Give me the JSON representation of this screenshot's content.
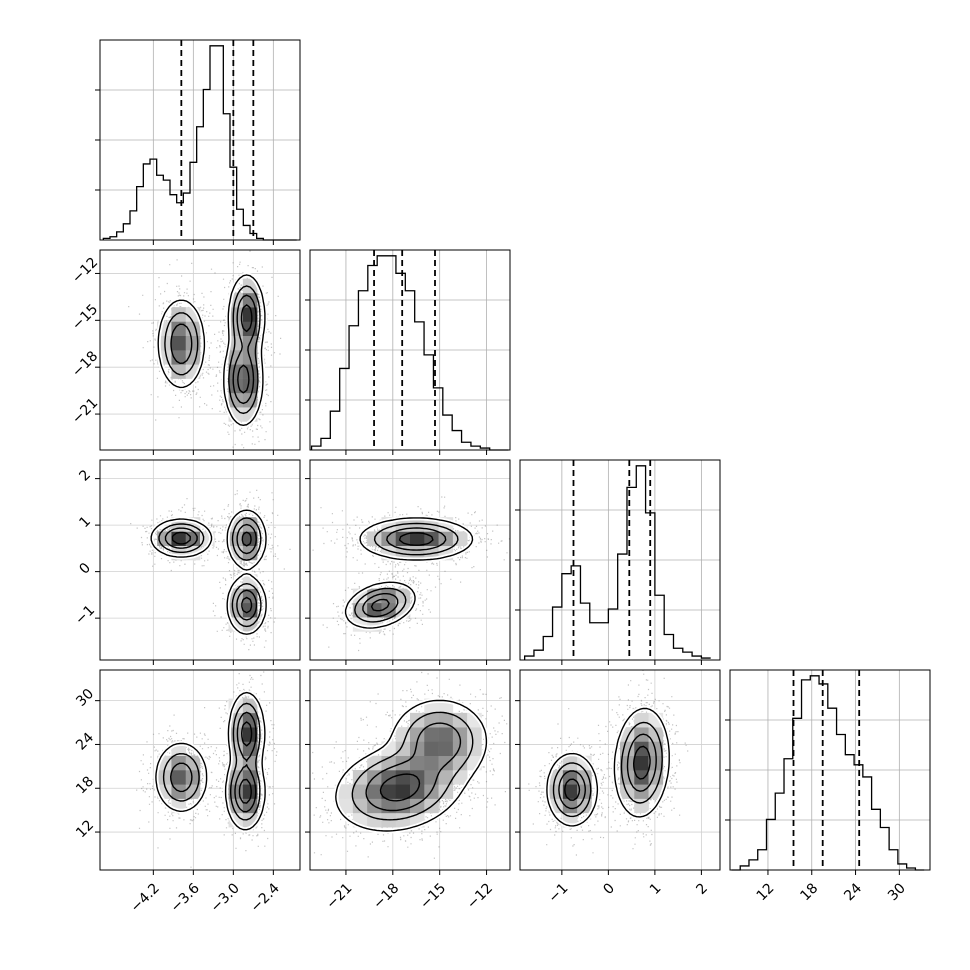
{
  "chart_data": {
    "type": "corner",
    "grid": true,
    "histograms": [
      {
        "param_index": 0,
        "edges": [
          -4.95,
          -4.85,
          -4.75,
          -4.65,
          -4.55,
          -4.45,
          -4.35,
          -4.25,
          -4.15,
          -4.05,
          -3.95,
          -3.85,
          -3.75,
          -3.65,
          -3.55,
          -3.45,
          -3.35,
          -3.25,
          -3.15,
          -3.05,
          -2.95,
          -2.85,
          -2.75,
          -2.65,
          -2.55,
          -2.45,
          -2.35,
          -2.25,
          -2.15,
          -2.05
        ],
        "counts": [
          0.01,
          0.02,
          0.05,
          0.1,
          0.18,
          0.33,
          0.47,
          0.5,
          0.4,
          0.37,
          0.28,
          0.23,
          0.29,
          0.48,
          0.7,
          0.93,
          1.2,
          1.2,
          0.78,
          0.45,
          0.19,
          0.09,
          0.04,
          0.01,
          0.0,
          0.0,
          0.0,
          0.0,
          0.0
        ],
        "quantiles": [
          -3.78,
          -3.0,
          -2.7
        ]
      },
      {
        "param_index": 1,
        "edges": [
          -23.2,
          -22.6,
          -22.0,
          -21.4,
          -20.8,
          -20.2,
          -19.6,
          -19.0,
          -18.4,
          -17.8,
          -17.2,
          -16.6,
          -16.0,
          -15.4,
          -14.8,
          -14.2,
          -13.6,
          -13.0,
          -12.4,
          -11.8,
          -11.2,
          -10.6
        ],
        "counts": [
          0.02,
          0.06,
          0.2,
          0.42,
          0.64,
          0.82,
          0.95,
          1.0,
          1.0,
          0.91,
          0.82,
          0.66,
          0.49,
          0.32,
          0.18,
          0.1,
          0.04,
          0.02,
          0.01,
          0.0,
          0.0
        ],
        "quantiles": [
          -19.2,
          -17.4,
          -15.3
        ]
      },
      {
        "param_index": 2,
        "edges": [
          -1.8,
          -1.6,
          -1.4,
          -1.2,
          -1.0,
          -0.8,
          -0.6,
          -0.4,
          -0.2,
          0.0,
          0.2,
          0.4,
          0.6,
          0.8,
          1.0,
          1.2,
          1.4,
          1.6,
          1.8,
          2.0,
          2.2
        ],
        "counts": [
          0.02,
          0.05,
          0.12,
          0.27,
          0.44,
          0.48,
          0.29,
          0.19,
          0.19,
          0.26,
          0.54,
          0.88,
          0.99,
          0.75,
          0.33,
          0.13,
          0.06,
          0.04,
          0.02,
          0.01
        ],
        "quantiles": [
          -0.75,
          0.45,
          0.9
        ]
      },
      {
        "param_index": 3,
        "edges": [
          7.0,
          8.2,
          9.4,
          10.6,
          11.8,
          13.0,
          14.2,
          15.4,
          16.6,
          17.8,
          19.0,
          20.2,
          21.4,
          22.6,
          23.8,
          25.0,
          26.2,
          27.4,
          28.6,
          29.8,
          31.0,
          32.2,
          33.4
        ],
        "counts": [
          0.0,
          0.02,
          0.05,
          0.1,
          0.25,
          0.38,
          0.55,
          0.75,
          0.94,
          0.96,
          0.92,
          0.8,
          0.67,
          0.57,
          0.52,
          0.46,
          0.3,
          0.21,
          0.1,
          0.03,
          0.01,
          0.0
        ],
        "quantiles": [
          15.5,
          19.5,
          24.5
        ]
      }
    ],
    "panels_2d": [
      {
        "x_param": 0,
        "y_param": 1,
        "components": [
          {
            "weight": 0.35,
            "mx": -3.78,
            "my": -16.5,
            "sx": 0.16,
            "sy": 1.3,
            "rho": 0.0
          },
          {
            "weight": 0.3,
            "mx": -2.8,
            "my": -14.8,
            "sx": 0.12,
            "sy": 1.2,
            "rho": 0.0
          },
          {
            "weight": 0.35,
            "mx": -2.85,
            "my": -18.8,
            "sx": 0.13,
            "sy": 1.3,
            "rho": 0.0
          }
        ]
      },
      {
        "x_param": 0,
        "y_param": 2,
        "components": [
          {
            "weight": 0.35,
            "mx": -3.78,
            "my": 0.72,
            "sx": 0.2,
            "sy": 0.18,
            "rho": 0.0
          },
          {
            "weight": 0.32,
            "mx": -2.8,
            "my": 0.7,
            "sx": 0.13,
            "sy": 0.28,
            "rho": 0.0
          },
          {
            "weight": 0.33,
            "mx": -2.8,
            "my": -0.72,
            "sx": 0.13,
            "sy": 0.28,
            "rho": 0.0
          }
        ]
      },
      {
        "x_param": 1,
        "y_param": 2,
        "components": [
          {
            "weight": 0.62,
            "mx": -16.5,
            "my": 0.7,
            "sx": 1.6,
            "sy": 0.2,
            "rho": 0.0
          },
          {
            "weight": 0.38,
            "mx": -18.8,
            "my": -0.72,
            "sx": 1.0,
            "sy": 0.22,
            "rho": 0.3
          }
        ]
      },
      {
        "x_param": 0,
        "y_param": 3,
        "components": [
          {
            "weight": 0.33,
            "mx": -3.78,
            "my": 19.5,
            "sx": 0.18,
            "sy": 2.2,
            "rho": 0.0
          },
          {
            "weight": 0.33,
            "mx": -2.8,
            "my": 25.5,
            "sx": 0.12,
            "sy": 2.5,
            "rho": 0.0
          },
          {
            "weight": 0.34,
            "mx": -2.82,
            "my": 17.5,
            "sx": 0.13,
            "sy": 2.3,
            "rho": 0.0
          }
        ]
      },
      {
        "x_param": 1,
        "y_param": 3,
        "components": [
          {
            "weight": 0.62,
            "mx": -17.6,
            "my": 18.0,
            "sx": 1.8,
            "sy": 2.6,
            "rho": 0.2
          },
          {
            "weight": 0.38,
            "mx": -15.0,
            "my": 24.5,
            "sx": 1.4,
            "sy": 2.6,
            "rho": 0.0
          }
        ]
      },
      {
        "x_param": 2,
        "y_param": 3,
        "components": [
          {
            "weight": 0.38,
            "mx": -0.78,
            "my": 17.8,
            "sx": 0.24,
            "sy": 2.2,
            "rho": 0.0
          },
          {
            "weight": 0.62,
            "mx": 0.72,
            "my": 21.5,
            "sx": 0.26,
            "sy": 3.3,
            "rho": 0.1
          }
        ]
      }
    ],
    "axes": [
      {
        "param_index": 0,
        "range": [
          -5.0,
          -2.0
        ],
        "ticks": [
          -4.2,
          -3.6,
          -3.0,
          -2.4
        ],
        "tick_labels": [
          "−4.2",
          "−3.6",
          "−3.0",
          "−2.4"
        ]
      },
      {
        "param_index": 1,
        "range": [
          -23.3,
          -10.5
        ],
        "ticks": [
          -21,
          -18,
          -15,
          -12
        ],
        "tick_labels": [
          "−21",
          "−18",
          "−15",
          "−12"
        ]
      },
      {
        "param_index": 2,
        "range": [
          -1.9,
          2.4
        ],
        "ticks": [
          -1,
          0,
          1,
          2
        ],
        "tick_labels": [
          "−1",
          "0",
          "1",
          "2"
        ]
      },
      {
        "param_index": 3,
        "range": [
          6.8,
          34.2
        ],
        "ticks": [
          12,
          18,
          24,
          30
        ],
        "tick_labels": [
          "12",
          "18",
          "24",
          "30"
        ]
      }
    ]
  }
}
